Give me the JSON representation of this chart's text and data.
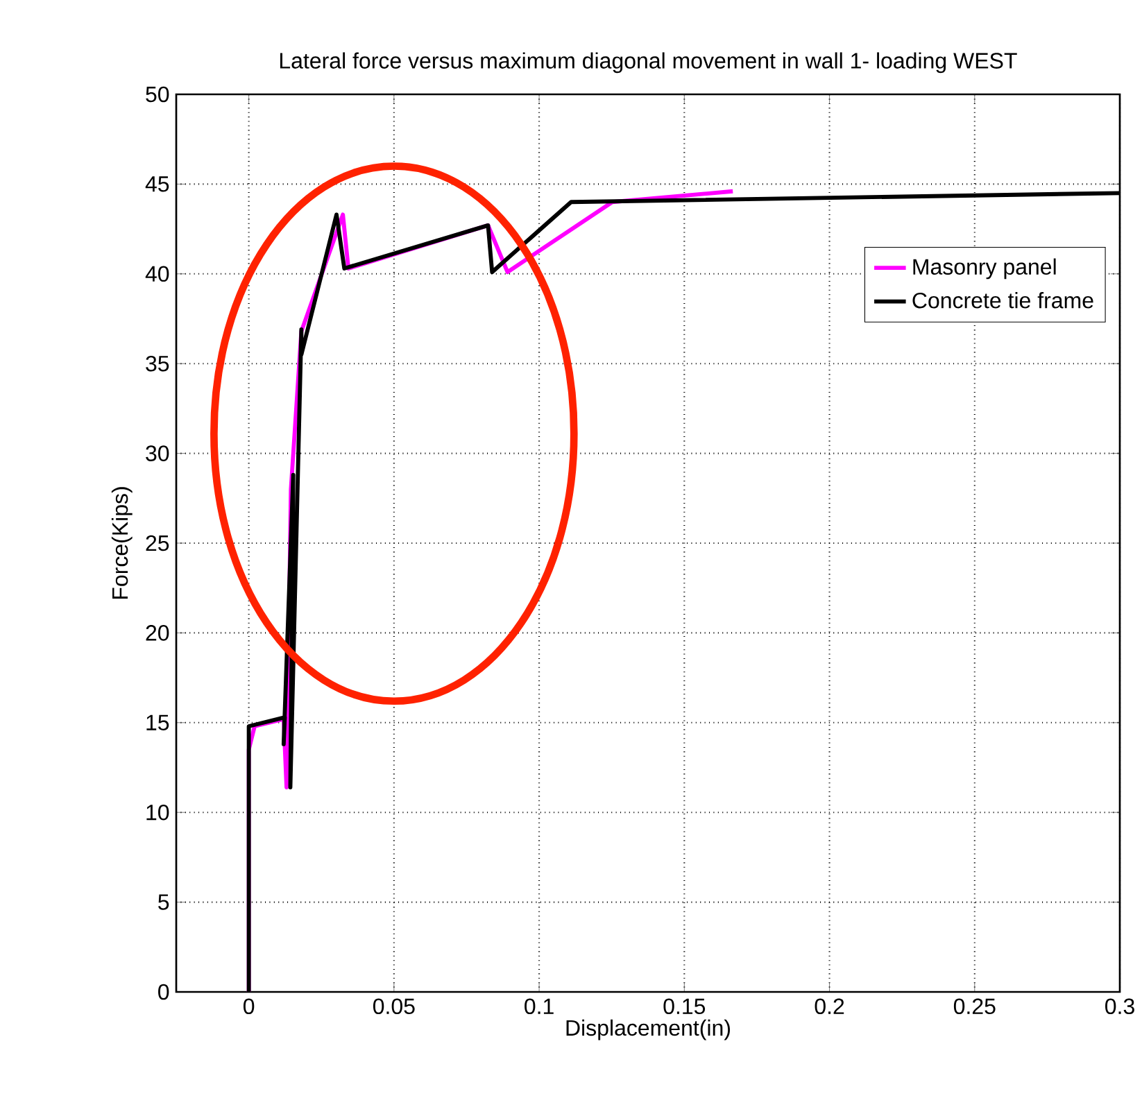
{
  "chart_data": {
    "type": "line",
    "title": "Lateral force versus maximum diagonal movement in wall 1- loading WEST",
    "xlabel": "Displacement(in)",
    "ylabel": "Force(Kips)",
    "xlim": [
      -0.025,
      0.3
    ],
    "ylim": [
      0,
      50
    ],
    "xticks": [
      0,
      0.05,
      0.1,
      0.15,
      0.2,
      0.25,
      0.3
    ],
    "yticks": [
      0,
      5,
      10,
      15,
      20,
      25,
      30,
      35,
      40,
      45,
      50
    ],
    "grid": true,
    "legend": "top right",
    "line_style": "solid",
    "marker": "none",
    "series": [
      {
        "name": "Masonry panel",
        "color": "#ff00ff",
        "x": [
          0,
          0,
          0.002,
          0.012,
          0.013,
          0.0145,
          0.0181,
          0.0324,
          0.0343,
          0.0824,
          0.0891,
          0.1252,
          0.1667
        ],
        "values": [
          0,
          13.5,
          14.8,
          15.2,
          11.4,
          28.0,
          36.8,
          43.3,
          40.3,
          42.7,
          40.1,
          44.0,
          44.6
        ]
      },
      {
        "name": "Concrete tie frame",
        "color": "#000000",
        "x": [
          0,
          0,
          0.0124,
          0.012,
          0.0153,
          0.0143,
          0.0181,
          0.0181,
          0.0302,
          0.0329,
          0.0824,
          0.0838,
          0.111,
          0.3
        ],
        "values": [
          0,
          14.8,
          15.3,
          13.8,
          28.8,
          11.4,
          36.9,
          35.5,
          43.3,
          40.3,
          42.7,
          40.1,
          44.0,
          44.5
        ]
      }
    ]
  }
}
